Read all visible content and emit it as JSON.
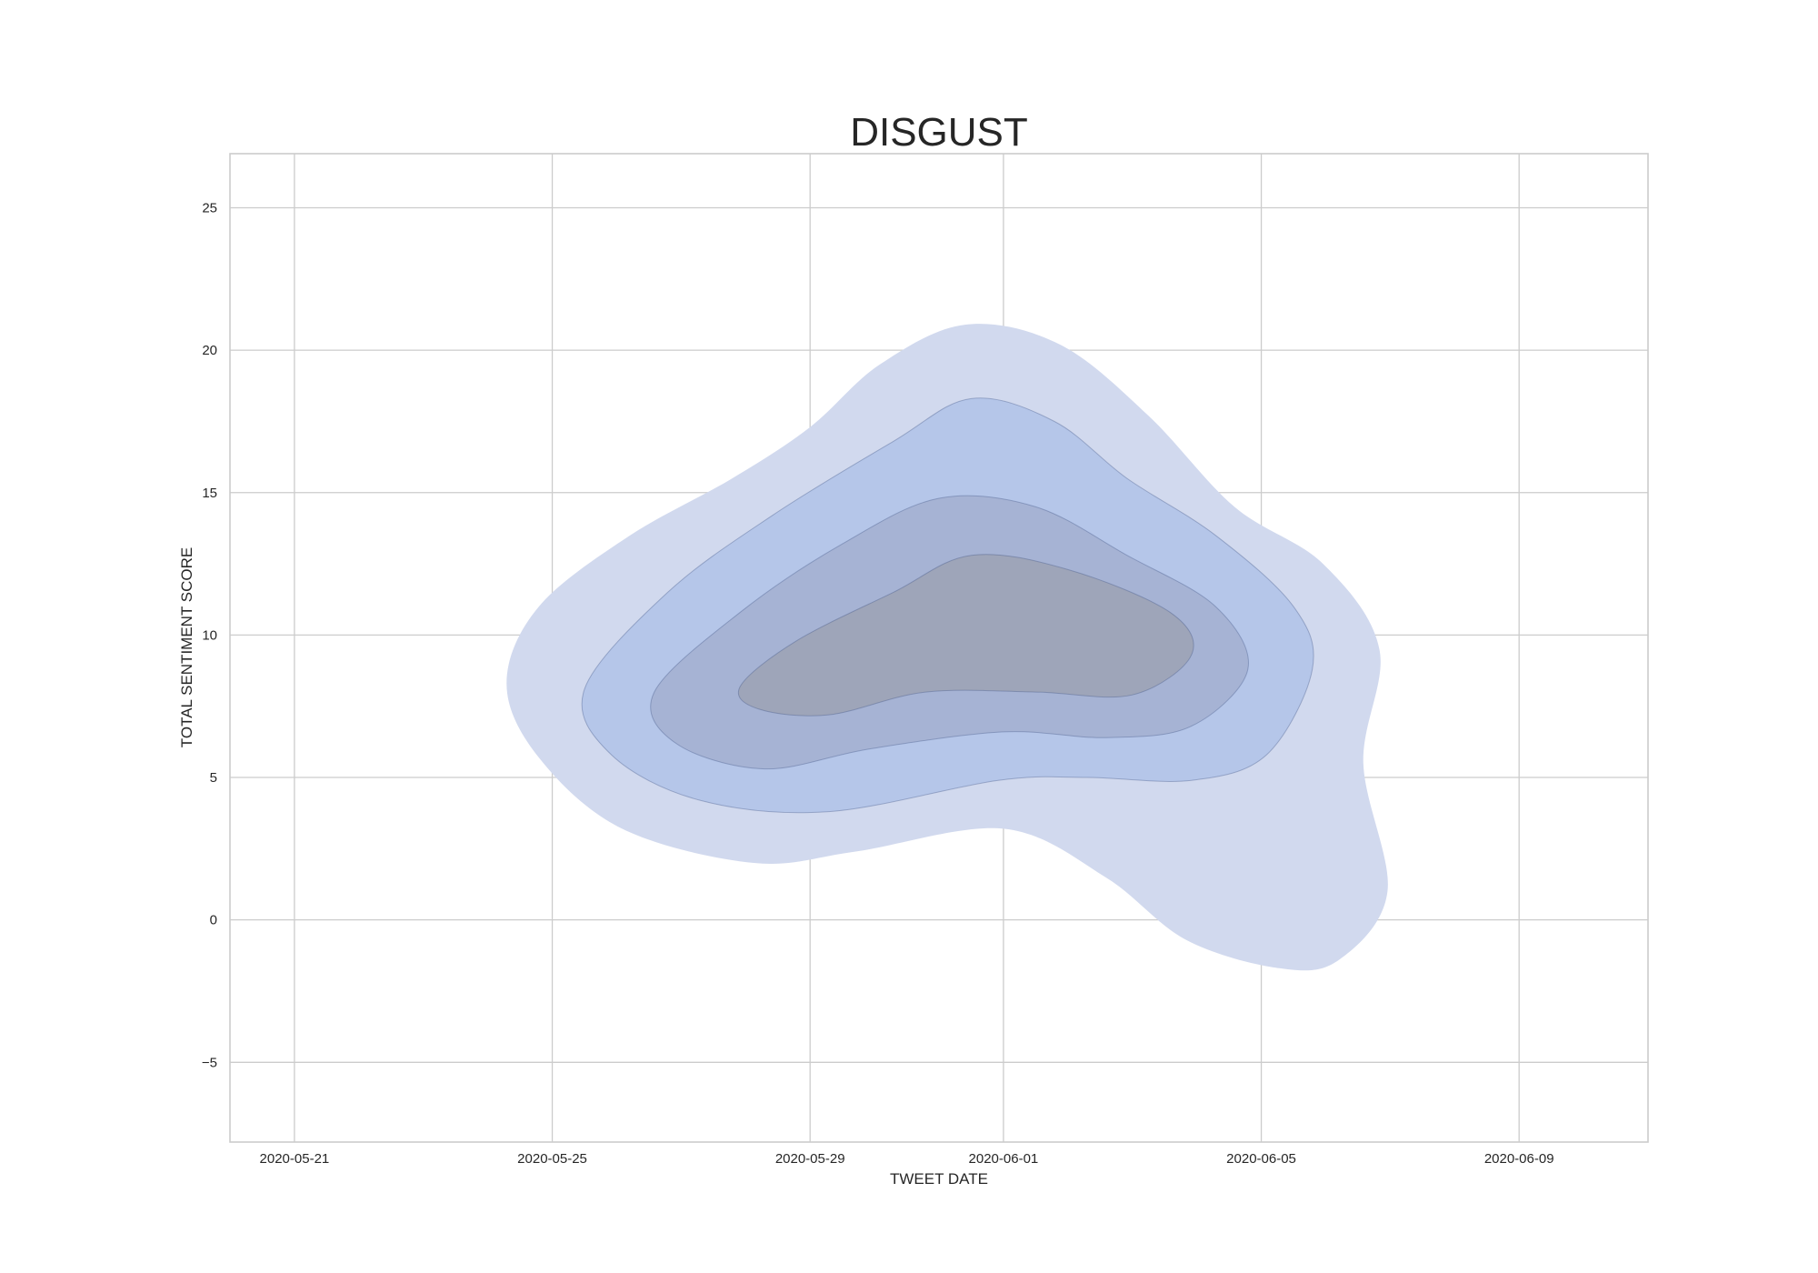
{
  "chart_data": {
    "type": "kde_contour",
    "title": "DISGUST",
    "xlabel": "TWEET DATE",
    "ylabel": "TOTAL SENTIMENT SCORE",
    "xlim": [
      "2020-05-20",
      "2020-06-11"
    ],
    "ylim": [
      -7.8,
      26.9
    ],
    "x_ticks": [
      "2020-05-21",
      "2020-05-25",
      "2020-05-29",
      "2020-06-01",
      "2020-06-05",
      "2020-06-09"
    ],
    "y_ticks": [
      -5,
      0,
      5,
      10,
      15,
      20,
      25
    ],
    "grid": true,
    "colors": {
      "fill": "#4c72b0",
      "level_fills": [
        "#d1d9ee",
        "#b5c6e9",
        "#a6b3d4",
        "#9ea5b9"
      ],
      "grid": "#cccccc"
    },
    "levels": [
      {
        "level": 1,
        "points": [
          [
            "2020-05-24 07:00",
            8.3
          ],
          [
            "2020-05-24 19:00",
            11.0
          ],
          [
            "2020-05-26 05:00",
            13.5
          ],
          [
            "2020-05-27 19:00",
            15.5
          ],
          [
            "2020-05-29 00:00",
            17.3
          ],
          [
            "2020-05-30 02:00",
            19.5
          ],
          [
            "2020-05-31 10:00",
            20.9
          ],
          [
            "2020-06-01 21:00",
            20.2
          ],
          [
            "2020-06-03 06:00",
            17.7
          ],
          [
            "2020-06-04 14:00",
            14.5
          ],
          [
            "2020-06-05 23:00",
            12.5
          ],
          [
            "2020-06-06 20:00",
            9.5
          ],
          [
            "2020-06-06 14:00",
            5.5
          ],
          [
            "2020-06-06 23:00",
            1.0
          ],
          [
            "2020-06-06 05:00",
            -1.4
          ],
          [
            "2020-06-05 07:00",
            -1.7
          ],
          [
            "2020-06-03 20:00",
            -0.7
          ],
          [
            "2020-06-02 14:00",
            1.5
          ],
          [
            "2020-06-01 00:00",
            3.2
          ],
          [
            "2020-05-29 17:00",
            2.4
          ],
          [
            "2020-05-28 03:00",
            2.0
          ],
          [
            "2020-05-26 02:00",
            3.2
          ],
          [
            "2020-05-24 19:00",
            5.7
          ]
        ]
      },
      {
        "level": 2,
        "points": [
          [
            "2020-05-25 12:00",
            8.1
          ],
          [
            "2020-05-26 19:00",
            11.5
          ],
          [
            "2020-05-28 10:00",
            14.2
          ],
          [
            "2020-05-30 07:00",
            16.8
          ],
          [
            "2020-05-31 12:00",
            18.3
          ],
          [
            "2020-06-01 19:00",
            17.5
          ],
          [
            "2020-06-02 22:00",
            15.5
          ],
          [
            "2020-06-04 07:00",
            13.5
          ],
          [
            "2020-06-05 12:00",
            11.0
          ],
          [
            "2020-06-05 19:00",
            8.8
          ],
          [
            "2020-06-05 02:00",
            5.8
          ],
          [
            "2020-06-03 22:00",
            4.9
          ],
          [
            "2020-06-02 07:00",
            5.0
          ],
          [
            "2020-06-00 22:00",
            4.9
          ],
          [
            "2020-05-29 07:00",
            3.8
          ],
          [
            "2020-05-27 07:00",
            4.2
          ],
          [
            "2020-05-25 22:00",
            5.8
          ]
        ]
      },
      {
        "level": 3,
        "points": [
          [
            "2020-05-26 14:00",
            8.0
          ],
          [
            "2020-05-27 22:00",
            10.8
          ],
          [
            "2020-05-29 12:00",
            13.2
          ],
          [
            "2020-05-31 00:00",
            14.8
          ],
          [
            "2020-06-01 12:00",
            14.5
          ],
          [
            "2020-06-02 22:00",
            12.8
          ],
          [
            "2020-06-04 07:00",
            11.0
          ],
          [
            "2020-06-04 19:00",
            8.8
          ],
          [
            "2020-06-03 22:00",
            6.8
          ],
          [
            "2020-06-02 14:00",
            6.4
          ],
          [
            "2020-06-01 00:00",
            6.6
          ],
          [
            "2020-05-29 22:00",
            6.0
          ],
          [
            "2020-05-28 07:00",
            5.3
          ],
          [
            "2020-05-26 22:00",
            6.2
          ]
        ]
      },
      {
        "level": 4,
        "points": [
          [
            "2020-05-27 22:00",
            8.2
          ],
          [
            "2020-05-28 19:00",
            9.8
          ],
          [
            "2020-05-30 07:00",
            11.5
          ],
          [
            "2020-05-31 12:00",
            12.8
          ],
          [
            "2020-06-02 00:00",
            12.3
          ],
          [
            "2020-06-03 14:00",
            10.8
          ],
          [
            "2020-06-03 22:00",
            9.3
          ],
          [
            "2020-06-03 00:00",
            7.9
          ],
          [
            "2020-06-01 12:00",
            8.0
          ],
          [
            "2020-05-30 19:00",
            8.0
          ],
          [
            "2020-05-29 07:00",
            7.2
          ],
          [
            "2020-05-28 05:00",
            7.4
          ]
        ]
      }
    ]
  }
}
